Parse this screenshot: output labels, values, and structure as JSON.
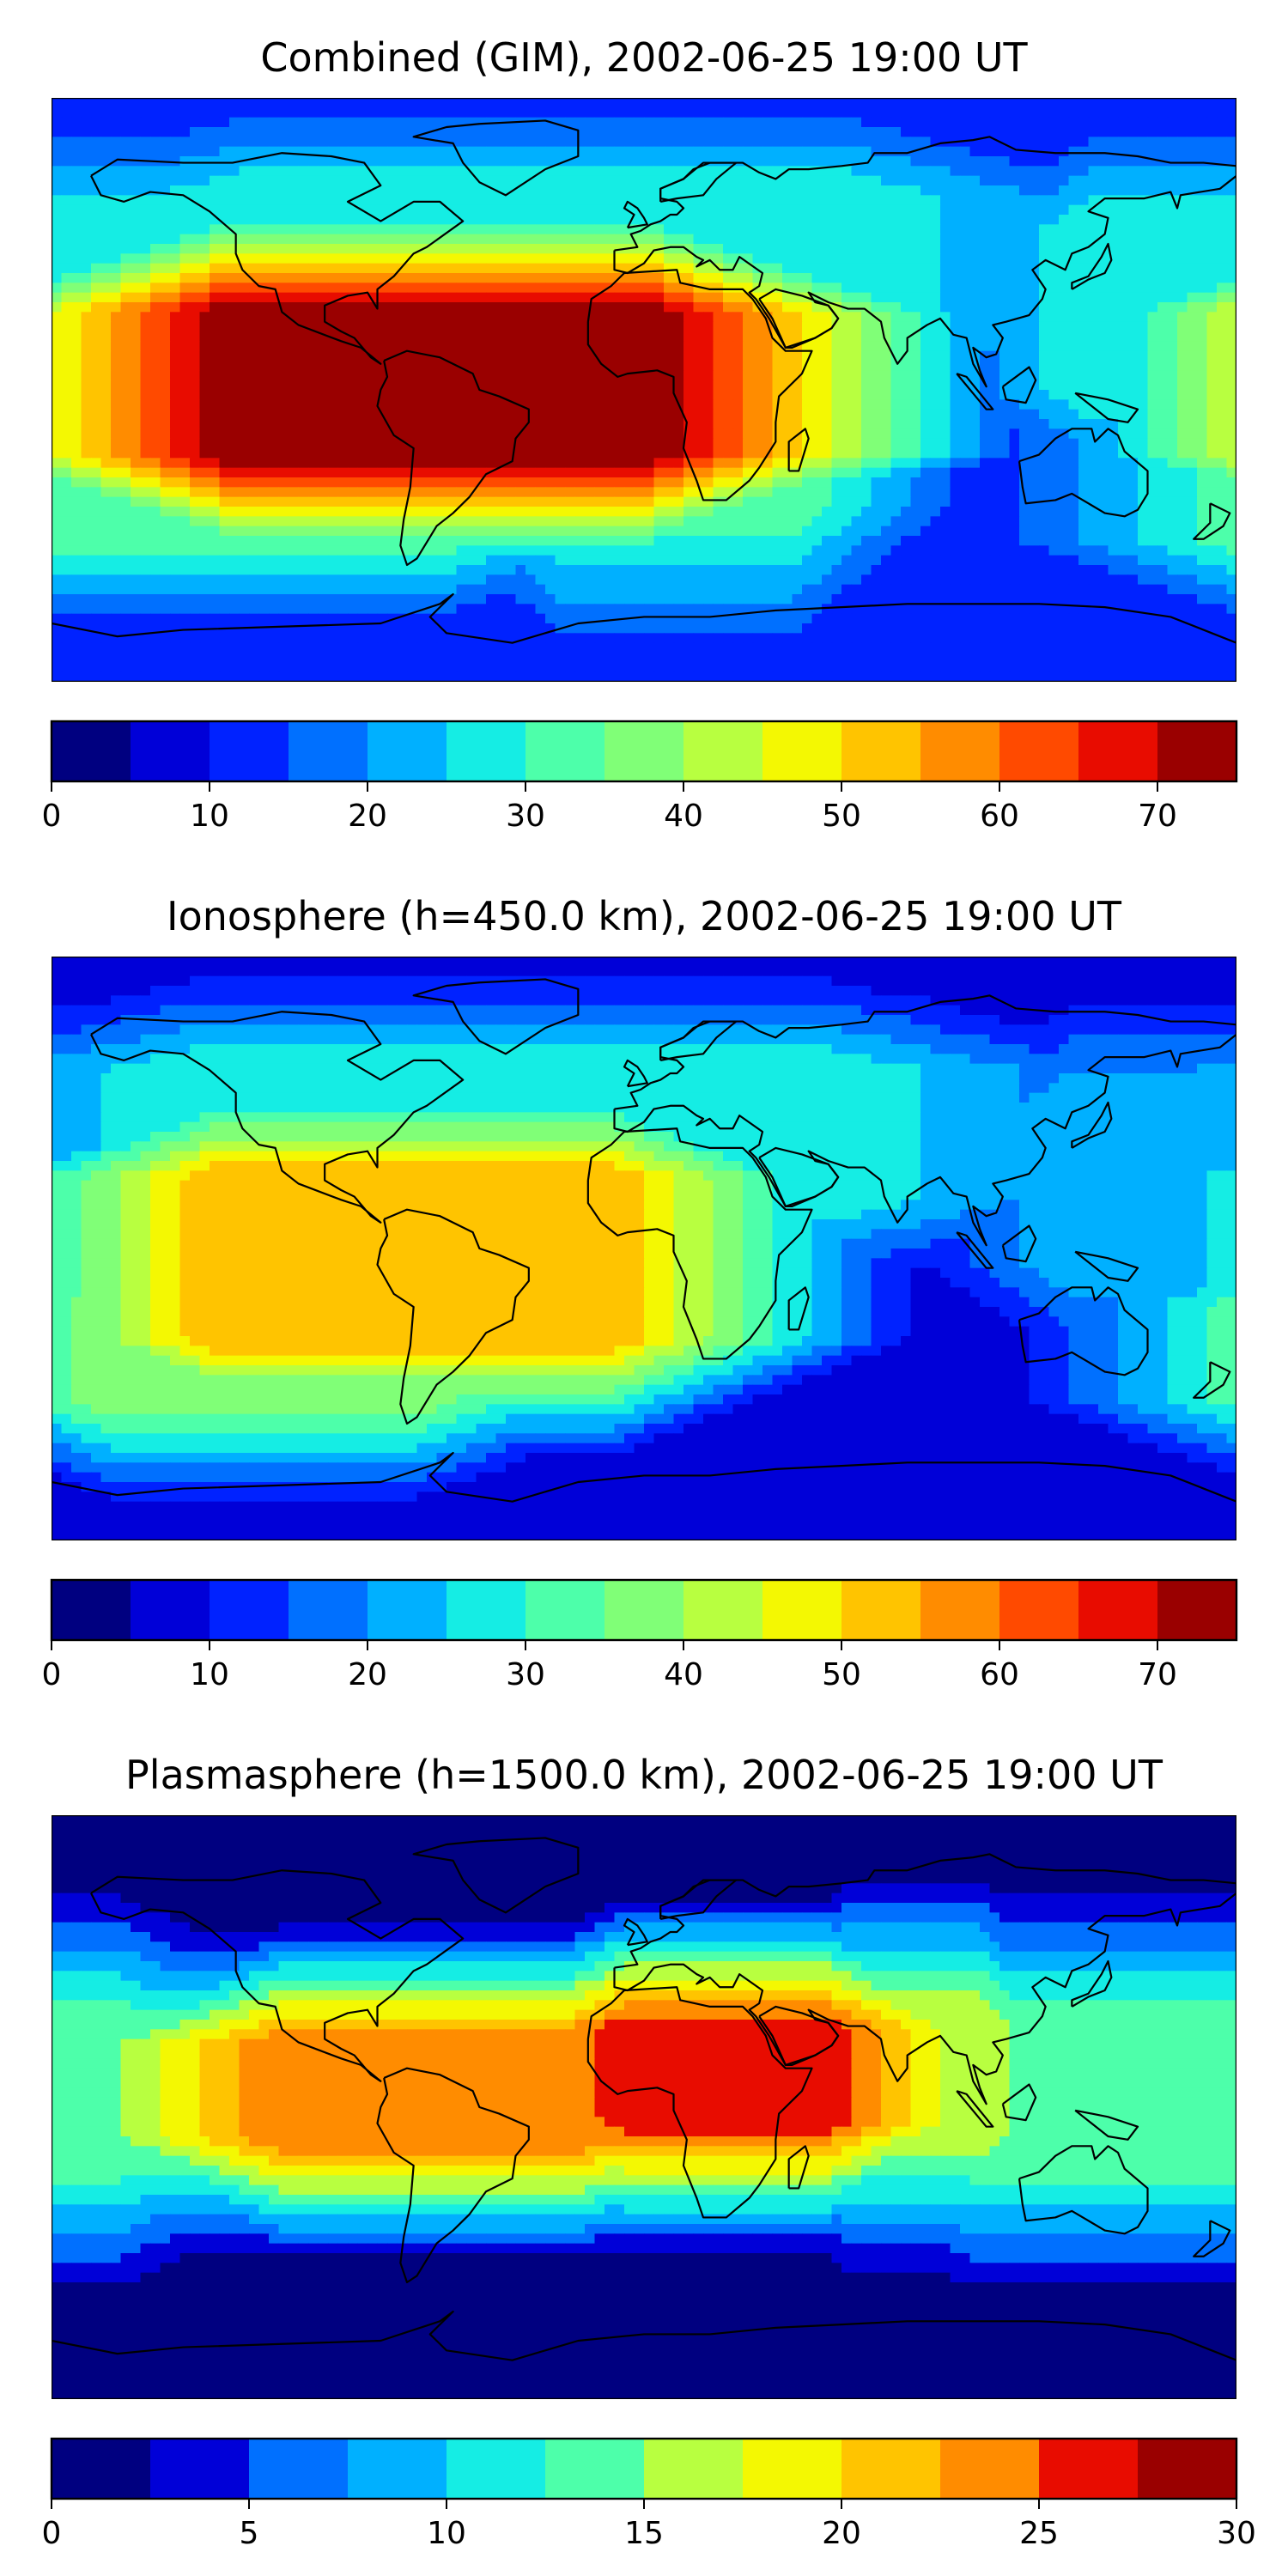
{
  "colormap": [
    "#000080",
    "#0000d8",
    "#0022ff",
    "#0070ff",
    "#00b0ff",
    "#15ede4",
    "#4dffaa",
    "#80ff77",
    "#b8ff40",
    "#f4f802",
    "#ffc400",
    "#ff8c00",
    "#ff4a00",
    "#e80c00",
    "#9a0000"
  ],
  "continent_line_color": "#000000",
  "panels": [
    {
      "id": "combined",
      "title": "Combined (GIM), 2002-06-25 19:00 UT",
      "vmin": 0,
      "vmax": 75,
      "levels": 15,
      "background_level": 2,
      "ticks": [
        0,
        10,
        20,
        30,
        40,
        50,
        60,
        70
      ],
      "features": [
        {
          "name": "south-atlantic-peak",
          "lon": -62,
          "lat": 2,
          "peak_level": 14,
          "spread_lon": 65,
          "spread_lat": 22,
          "step_lon": 9,
          "step_lat": 3
        },
        {
          "name": "north-hemisphere-band",
          "lon": -30,
          "lat": 38,
          "peak_level": 5,
          "spread_lon": 90,
          "spread_lat": 22,
          "step_lon": 30,
          "step_lat": 8
        },
        {
          "name": "south-pacific-arm",
          "lon": -120,
          "lat": -28,
          "peak_level": 6,
          "spread_lon": 55,
          "spread_lat": 18,
          "step_lon": 18,
          "step_lat": 6
        },
        {
          "name": "africa-arm",
          "lon": 10,
          "lat": -5,
          "peak_level": 6,
          "spread_lon": 35,
          "spread_lat": 30,
          "step_lon": 12,
          "step_lat": 10
        },
        {
          "name": "east-pacific-arm",
          "lon": 175,
          "lat": 25,
          "peak_level": 5,
          "spread_lon": 40,
          "spread_lat": 25,
          "step_lon": 14,
          "step_lat": 9
        },
        {
          "name": "australia-minimum",
          "lon": 125,
          "lat": -45,
          "peak_level": 1,
          "spread_lon": 60,
          "spread_lat": 10,
          "step_lon": 60,
          "step_lat": 10
        }
      ]
    },
    {
      "id": "ionosphere",
      "title": "Ionosphere  (h=450.0 km), 2002-06-25 19:00 UT",
      "vmin": 0,
      "vmax": 75,
      "levels": 15,
      "background_level": 1,
      "ticks": [
        0,
        10,
        20,
        30,
        40,
        50,
        60,
        70
      ],
      "features": [
        {
          "name": "south-america-peak",
          "lon": -70,
          "lat": -3,
          "peak_level": 10,
          "spread_lon": 60,
          "spread_lat": 25,
          "step_lon": 10,
          "step_lat": 4
        },
        {
          "name": "brazil-hotspot",
          "lon": -45,
          "lat": 2,
          "peak_level": 10,
          "spread_lon": 12,
          "spread_lat": 5,
          "step_lon": 6,
          "step_lat": 3
        },
        {
          "name": "north-atlantic-band",
          "lon": -40,
          "lat": 35,
          "peak_level": 5,
          "spread_lon": 95,
          "spread_lat": 20,
          "step_lon": 30,
          "step_lat": 7
        },
        {
          "name": "south-pacific-arm",
          "lon": -115,
          "lat": -32,
          "peak_level": 7,
          "spread_lon": 45,
          "spread_lat": 15,
          "step_lon": 14,
          "step_lat": 5
        },
        {
          "name": "east-pacific-arm",
          "lon": 170,
          "lat": 20,
          "peak_level": 4,
          "spread_lon": 40,
          "spread_lat": 25,
          "step_lon": 15,
          "step_lat": 10
        },
        {
          "name": "europe-band",
          "lon": 30,
          "lat": 40,
          "peak_level": 4,
          "spread_lon": 50,
          "spread_lat": 15,
          "step_lon": 25,
          "step_lat": 8
        }
      ]
    },
    {
      "id": "plasmasphere",
      "title": "Plasmasphere (h=1500.0 km), 2002-06-25 19:00 UT",
      "vmin": 0,
      "vmax": 30,
      "levels": 12,
      "background_level": 0,
      "ticks": [
        0,
        5,
        10,
        15,
        20,
        25,
        30
      ],
      "features": [
        {
          "name": "equatorial-band",
          "lon": 0,
          "lat": 5,
          "peak_level": 5,
          "spread_lon": 220,
          "spread_lat": 20,
          "step_lon": 80,
          "step_lat": 6
        },
        {
          "name": "south-america-peak",
          "lon": -65,
          "lat": 5,
          "peak_level": 9,
          "spread_lon": 45,
          "spread_lat": 15,
          "step_lon": 12,
          "step_lat": 4
        },
        {
          "name": "africa-peak",
          "lon": 25,
          "lat": 10,
          "peak_level": 10,
          "spread_lon": 30,
          "spread_lat": 14,
          "step_lon": 9,
          "step_lat": 4
        },
        {
          "name": "india-bump",
          "lon": 82,
          "lat": 10,
          "peak_level": 6,
          "spread_lon": 20,
          "spread_lat": 18,
          "step_lon": 8,
          "step_lat": 7
        },
        {
          "name": "pacific-band",
          "lon": 150,
          "lat": 5,
          "peak_level": 5,
          "spread_lon": 50,
          "spread_lat": 20,
          "step_lon": 18,
          "step_lat": 8
        }
      ]
    }
  ]
}
